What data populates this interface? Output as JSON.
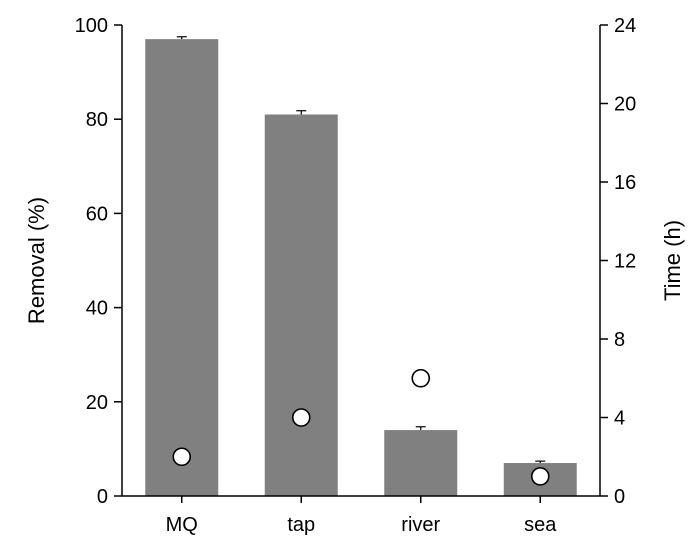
{
  "chart_data": {
    "type": "bar",
    "categories": [
      "MQ",
      "tap",
      "river",
      "sea"
    ],
    "series": [
      {
        "type": "bar",
        "axis": "left",
        "values": [
          97,
          81,
          14,
          7
        ],
        "error": [
          0.5,
          0.8,
          0.7,
          0.4
        ],
        "color": "#808080"
      },
      {
        "type": "scatter",
        "axis": "right",
        "values": [
          2,
          4,
          6,
          1
        ],
        "marker": "open-circle"
      }
    ],
    "ylabel": "Removal (%)",
    "ylabel_right": "Time (h)",
    "ylim": [
      0,
      100
    ],
    "ylim_right": [
      0,
      24
    ],
    "yticks": [
      "0",
      "20",
      "40",
      "60",
      "80",
      "100"
    ],
    "yticks_right": [
      "0",
      "4",
      "8",
      "12",
      "16",
      "20",
      "24"
    ],
    "grid": false,
    "legend": "none"
  }
}
